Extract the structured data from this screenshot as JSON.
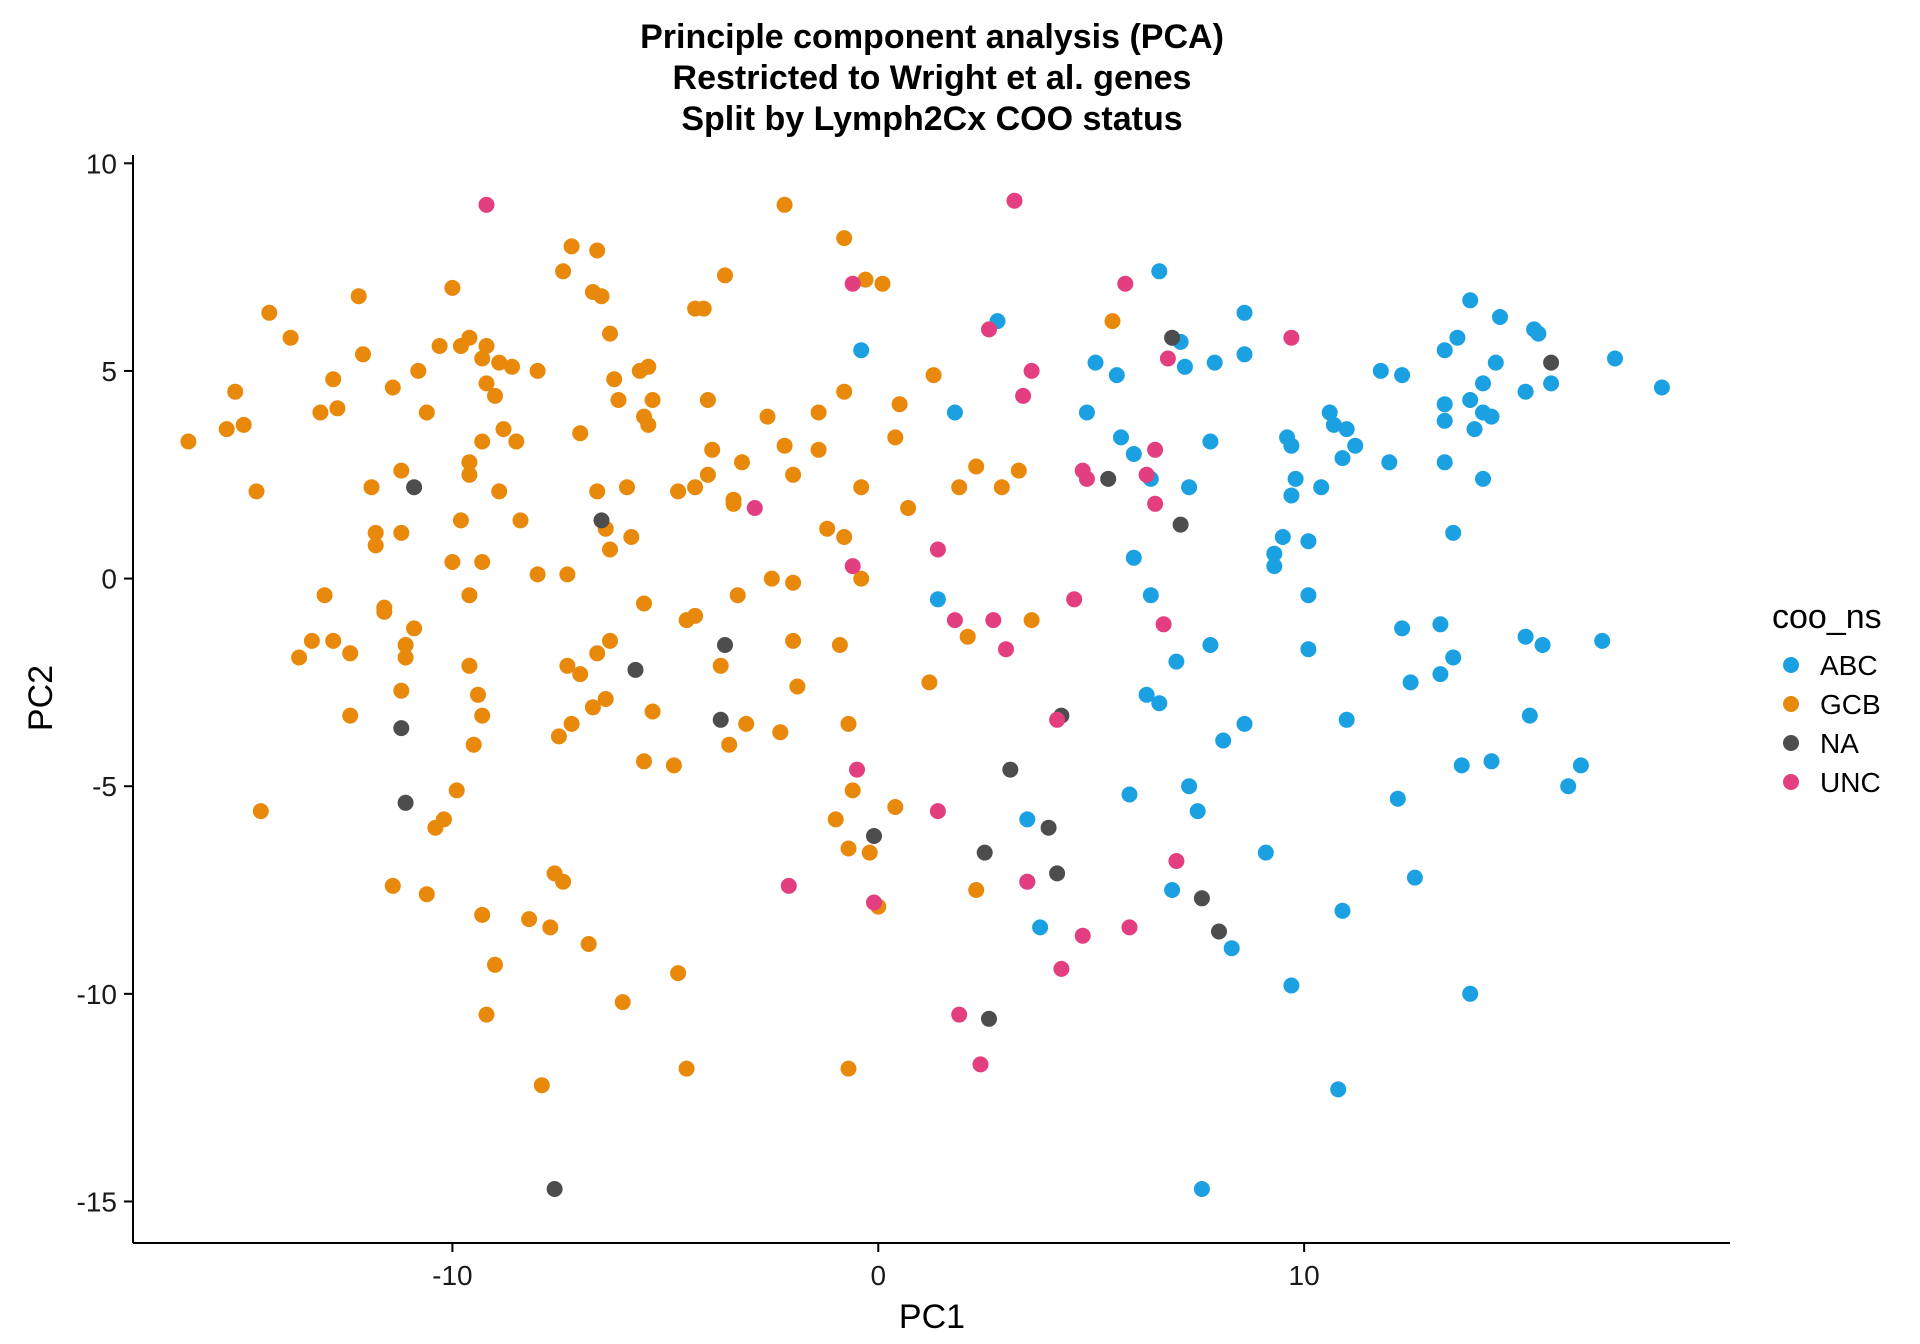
{
  "chart_data": {
    "type": "scatter",
    "title": [
      "Principle component analysis (PCA)",
      "Restricted to Wright et al. genes",
      "Split by Lymph2Cx COO status"
    ],
    "xlabel": "PC1",
    "ylabel": "PC2",
    "xlim": [
      -17.5,
      20
    ],
    "ylim": [
      -16,
      10.2
    ],
    "x_ticks": [
      -10,
      0,
      10
    ],
    "x_tick_labels": [
      "-10",
      "0",
      "10"
    ],
    "y_ticks": [
      10,
      5,
      0,
      -5,
      -10,
      -15
    ],
    "y_tick_labels": [
      "10",
      "5",
      "0",
      "-5",
      "-10",
      "-15"
    ],
    "grid": false,
    "legend": {
      "title": "coo_ns",
      "placement": "right"
    },
    "series": [
      {
        "name": "ABC",
        "color": "#1ba1e2",
        "points": [
          [
            -0.4,
            5.5
          ],
          [
            1.8,
            4.0
          ],
          [
            2.8,
            6.2
          ],
          [
            5.1,
            5.2
          ],
          [
            5.6,
            4.9
          ],
          [
            4.9,
            4.0
          ],
          [
            5.7,
            3.4
          ],
          [
            6.0,
            3.0
          ],
          [
            6.6,
            7.4
          ],
          [
            7.1,
            5.7
          ],
          [
            7.2,
            5.1
          ],
          [
            7.9,
            5.2
          ],
          [
            8.6,
            6.4
          ],
          [
            8.6,
            5.4
          ],
          [
            7.8,
            3.3
          ],
          [
            6.4,
            2.4
          ],
          [
            7.3,
            2.2
          ],
          [
            6.0,
            0.5
          ],
          [
            6.4,
            -0.4
          ],
          [
            9.6,
            3.4
          ],
          [
            9.7,
            3.2
          ],
          [
            9.8,
            2.4
          ],
          [
            9.7,
            2.0
          ],
          [
            10.4,
            2.2
          ],
          [
            9.5,
            1.0
          ],
          [
            10.1,
            0.9
          ],
          [
            9.3,
            0.6
          ],
          [
            9.3,
            0.3
          ],
          [
            10.6,
            4.0
          ],
          [
            10.7,
            3.7
          ],
          [
            11.0,
            3.6
          ],
          [
            11.2,
            3.2
          ],
          [
            10.9,
            2.9
          ],
          [
            11.8,
            5.0
          ],
          [
            12.3,
            4.9
          ],
          [
            12.0,
            2.8
          ],
          [
            13.3,
            5.5
          ],
          [
            13.6,
            5.8
          ],
          [
            13.3,
            4.2
          ],
          [
            13.3,
            3.8
          ],
          [
            13.9,
            6.7
          ],
          [
            14.6,
            6.3
          ],
          [
            14.2,
            4.7
          ],
          [
            13.9,
            4.3
          ],
          [
            14.5,
            5.2
          ],
          [
            14.2,
            4.0
          ],
          [
            14.4,
            3.9
          ],
          [
            14.0,
            3.6
          ],
          [
            15.2,
            4.5
          ],
          [
            15.4,
            6.0
          ],
          [
            15.5,
            5.9
          ],
          [
            15.8,
            4.7
          ],
          [
            17.3,
            5.3
          ],
          [
            18.4,
            4.6
          ],
          [
            13.3,
            2.8
          ],
          [
            14.2,
            2.4
          ],
          [
            13.5,
            1.1
          ],
          [
            1.4,
            -0.5
          ],
          [
            10.1,
            -0.4
          ],
          [
            7.0,
            -2.0
          ],
          [
            7.8,
            -1.6
          ],
          [
            10.1,
            -1.7
          ],
          [
            12.3,
            -1.2
          ],
          [
            13.2,
            -1.1
          ],
          [
            13.5,
            -1.9
          ],
          [
            12.5,
            -2.5
          ],
          [
            13.2,
            -2.3
          ],
          [
            15.2,
            -1.4
          ],
          [
            15.6,
            -1.6
          ],
          [
            17.0,
            -1.5
          ],
          [
            6.3,
            -2.8
          ],
          [
            6.6,
            -3.0
          ],
          [
            8.1,
            -3.9
          ],
          [
            8.6,
            -3.5
          ],
          [
            11.0,
            -3.4
          ],
          [
            15.3,
            -3.3
          ],
          [
            5.9,
            -5.2
          ],
          [
            7.3,
            -5.0
          ],
          [
            7.5,
            -5.6
          ],
          [
            12.2,
            -5.3
          ],
          [
            13.7,
            -4.5
          ],
          [
            14.4,
            -4.4
          ],
          [
            16.5,
            -4.5
          ],
          [
            16.2,
            -5.0
          ],
          [
            3.5,
            -5.8
          ],
          [
            9.1,
            -6.6
          ],
          [
            3.5,
            -7.3
          ],
          [
            6.9,
            -7.5
          ],
          [
            12.6,
            -7.2
          ],
          [
            3.8,
            -8.4
          ],
          [
            8.3,
            -8.9
          ],
          [
            10.9,
            -8.0
          ],
          [
            9.7,
            -9.8
          ],
          [
            13.9,
            -10.0
          ],
          [
            10.8,
            -12.3
          ],
          [
            7.6,
            -14.7
          ]
        ]
      },
      {
        "name": "GCB",
        "color": "#e8890c",
        "points": [
          [
            -16.2,
            3.3
          ],
          [
            -15.3,
            3.6
          ],
          [
            -15.1,
            4.5
          ],
          [
            -14.9,
            3.7
          ],
          [
            -14.6,
            2.1
          ],
          [
            -14.3,
            6.4
          ],
          [
            -13.8,
            5.8
          ],
          [
            -13.1,
            4.0
          ],
          [
            -12.8,
            4.8
          ],
          [
            -12.7,
            4.1
          ],
          [
            -12.2,
            6.8
          ],
          [
            -12.1,
            5.4
          ],
          [
            -11.9,
            2.2
          ],
          [
            -11.8,
            1.1
          ],
          [
            -11.8,
            0.8
          ],
          [
            -11.4,
            4.6
          ],
          [
            -11.2,
            2.6
          ],
          [
            -11.2,
            1.1
          ],
          [
            -10.8,
            5.0
          ],
          [
            -10.6,
            4.0
          ],
          [
            -10.3,
            5.6
          ],
          [
            -10.0,
            7.0
          ],
          [
            -9.8,
            5.6
          ],
          [
            -9.6,
            5.8
          ],
          [
            -9.3,
            5.3
          ],
          [
            -9.2,
            5.6
          ],
          [
            -9.2,
            4.7
          ],
          [
            -9.0,
            4.4
          ],
          [
            -8.9,
            5.2
          ],
          [
            -8.6,
            5.1
          ],
          [
            -8.0,
            5.0
          ],
          [
            -9.3,
            3.3
          ],
          [
            -9.6,
            2.8
          ],
          [
            -9.6,
            2.5
          ],
          [
            -8.8,
            3.6
          ],
          [
            -8.5,
            3.3
          ],
          [
            -9.8,
            1.4
          ],
          [
            -8.9,
            2.1
          ],
          [
            -8.4,
            1.4
          ],
          [
            -9.3,
            0.4
          ],
          [
            -10.0,
            0.4
          ],
          [
            -11.6,
            -0.7
          ],
          [
            -11.6,
            -0.8
          ],
          [
            -10.9,
            -1.2
          ],
          [
            -11.1,
            -1.6
          ],
          [
            -11.1,
            -1.9
          ],
          [
            -9.6,
            -0.4
          ],
          [
            -13.0,
            -0.4
          ],
          [
            -13.3,
            -1.5
          ],
          [
            -12.8,
            -1.5
          ],
          [
            -12.4,
            -1.8
          ],
          [
            -13.6,
            -1.9
          ],
          [
            -11.2,
            -2.7
          ],
          [
            -9.6,
            -2.1
          ],
          [
            -9.4,
            -2.8
          ],
          [
            -9.3,
            -3.3
          ],
          [
            -9.5,
            -4.0
          ],
          [
            -12.4,
            -3.3
          ],
          [
            -8.0,
            0.1
          ],
          [
            -7.3,
            0.1
          ],
          [
            -7.4,
            7.4
          ],
          [
            -7.2,
            8.0
          ],
          [
            -6.7,
            6.9
          ],
          [
            -6.5,
            6.8
          ],
          [
            -6.6,
            7.9
          ],
          [
            -6.3,
            5.9
          ],
          [
            -6.2,
            4.8
          ],
          [
            -6.1,
            4.3
          ],
          [
            -5.6,
            5.0
          ],
          [
            -5.4,
            5.1
          ],
          [
            -5.5,
            3.9
          ],
          [
            -5.3,
            4.3
          ],
          [
            -5.4,
            3.7
          ],
          [
            -7.0,
            3.5
          ],
          [
            -6.6,
            2.1
          ],
          [
            -5.9,
            2.2
          ],
          [
            -6.4,
            1.2
          ],
          [
            -5.8,
            1.0
          ],
          [
            -6.3,
            0.7
          ],
          [
            -7.3,
            -2.1
          ],
          [
            -7.0,
            -2.3
          ],
          [
            -6.6,
            -1.8
          ],
          [
            -6.3,
            -1.5
          ],
          [
            -5.5,
            -0.6
          ],
          [
            -4.5,
            -1.0
          ],
          [
            -4.3,
            -0.9
          ],
          [
            -3.7,
            -2.1
          ],
          [
            -6.7,
            -3.1
          ],
          [
            -6.4,
            -2.9
          ],
          [
            -5.3,
            -3.2
          ],
          [
            -7.2,
            -3.5
          ],
          [
            -7.5,
            -3.8
          ],
          [
            -5.5,
            -4.4
          ],
          [
            -4.8,
            -4.5
          ],
          [
            -3.5,
            -4.0
          ],
          [
            -4.3,
            6.5
          ],
          [
            -4.1,
            6.5
          ],
          [
            -3.6,
            7.3
          ],
          [
            -2.2,
            9.0
          ],
          [
            -0.8,
            8.2
          ],
          [
            -0.3,
            7.2
          ],
          [
            0.1,
            7.1
          ],
          [
            -4.0,
            4.3
          ],
          [
            -3.9,
            3.1
          ],
          [
            -4.0,
            2.5
          ],
          [
            -3.4,
            1.8
          ],
          [
            -4.3,
            2.2
          ],
          [
            -4.7,
            2.1
          ],
          [
            -3.4,
            1.9
          ],
          [
            -3.2,
            2.8
          ],
          [
            -2.6,
            3.9
          ],
          [
            -1.4,
            3.1
          ],
          [
            -2.2,
            3.2
          ],
          [
            -1.4,
            4.0
          ],
          [
            -0.8,
            4.5
          ],
          [
            -2.0,
            2.5
          ],
          [
            -0.4,
            2.2
          ],
          [
            0.5,
            4.2
          ],
          [
            0.4,
            3.4
          ],
          [
            -1.2,
            1.2
          ],
          [
            -0.8,
            1.0
          ],
          [
            -0.4,
            0.0
          ],
          [
            0.7,
            1.7
          ],
          [
            -2.5,
            0.0
          ],
          [
            -2.0,
            -0.1
          ],
          [
            -3.3,
            -0.4
          ],
          [
            -2.0,
            -1.5
          ],
          [
            -1.9,
            -2.6
          ],
          [
            -0.9,
            -1.6
          ],
          [
            -2.3,
            -3.7
          ],
          [
            -3.1,
            -3.5
          ],
          [
            -0.7,
            -3.5
          ],
          [
            1.2,
            -2.5
          ],
          [
            -0.6,
            -5.1
          ],
          [
            -1.0,
            -5.8
          ],
          [
            -0.7,
            -6.5
          ],
          [
            -0.2,
            -6.6
          ],
          [
            0.4,
            -5.5
          ],
          [
            -7.4,
            -7.3
          ],
          [
            -7.6,
            -7.1
          ],
          [
            -10.4,
            -6.0
          ],
          [
            -10.2,
            -5.8
          ],
          [
            -9.9,
            -5.1
          ],
          [
            -14.5,
            -5.6
          ],
          [
            -11.4,
            -7.4
          ],
          [
            -10.6,
            -7.6
          ],
          [
            -9.3,
            -8.1
          ],
          [
            -8.2,
            -8.2
          ],
          [
            -7.7,
            -8.4
          ],
          [
            -6.8,
            -8.8
          ],
          [
            -9.0,
            -9.3
          ],
          [
            -6.0,
            -10.2
          ],
          [
            -4.7,
            -9.5
          ],
          [
            -9.2,
            -10.5
          ],
          [
            -7.9,
            -12.2
          ],
          [
            -4.5,
            -11.8
          ],
          [
            -0.7,
            -11.8
          ],
          [
            1.3,
            4.9
          ],
          [
            1.9,
            2.2
          ],
          [
            2.3,
            2.7
          ],
          [
            2.9,
            2.2
          ],
          [
            3.3,
            2.6
          ],
          [
            5.5,
            6.2
          ],
          [
            2.1,
            -1.4
          ],
          [
            3.6,
            -1.0
          ],
          [
            2.3,
            -7.5
          ],
          [
            0.0,
            -7.9
          ]
        ]
      },
      {
        "name": "NA",
        "color": "#4d4d4d",
        "points": [
          [
            -10.9,
            2.2
          ],
          [
            -6.5,
            1.4
          ],
          [
            -3.6,
            -1.6
          ],
          [
            -5.7,
            -2.2
          ],
          [
            -11.2,
            -3.6
          ],
          [
            -11.1,
            -5.4
          ],
          [
            -3.7,
            -3.4
          ],
          [
            -7.6,
            -14.7
          ],
          [
            -0.1,
            -6.2
          ],
          [
            2.5,
            -6.6
          ],
          [
            3.1,
            -4.6
          ],
          [
            4.0,
            -6.0
          ],
          [
            4.3,
            -3.3
          ],
          [
            4.2,
            -7.1
          ],
          [
            2.6,
            -10.6
          ],
          [
            5.4,
            2.4
          ],
          [
            7.1,
            1.3
          ],
          [
            6.9,
            5.8
          ],
          [
            7.6,
            -7.7
          ],
          [
            8.0,
            -8.5
          ],
          [
            15.8,
            5.2
          ]
        ]
      },
      {
        "name": "UNC",
        "color": "#e23e80",
        "points": [
          [
            -9.2,
            9.0
          ],
          [
            -2.9,
            1.7
          ],
          [
            3.2,
            9.1
          ],
          [
            -0.6,
            7.1
          ],
          [
            2.6,
            6.0
          ],
          [
            3.6,
            5.0
          ],
          [
            3.4,
            4.4
          ],
          [
            5.8,
            7.1
          ],
          [
            6.8,
            5.3
          ],
          [
            9.7,
            5.8
          ],
          [
            6.5,
            3.1
          ],
          [
            6.3,
            2.5
          ],
          [
            4.8,
            2.6
          ],
          [
            4.9,
            2.4
          ],
          [
            6.5,
            1.8
          ],
          [
            -0.6,
            0.3
          ],
          [
            1.4,
            0.7
          ],
          [
            1.8,
            -1.0
          ],
          [
            2.7,
            -1.0
          ],
          [
            3.0,
            -1.7
          ],
          [
            4.6,
            -0.5
          ],
          [
            6.7,
            -1.1
          ],
          [
            -0.5,
            -4.6
          ],
          [
            1.4,
            -5.6
          ],
          [
            4.2,
            -3.4
          ],
          [
            -2.1,
            -7.4
          ],
          [
            -0.1,
            -7.8
          ],
          [
            3.5,
            -7.3
          ],
          [
            7.0,
            -6.8
          ],
          [
            4.8,
            -8.6
          ],
          [
            5.9,
            -8.4
          ],
          [
            4.3,
            -9.4
          ],
          [
            1.9,
            -10.5
          ],
          [
            2.4,
            -11.7
          ]
        ]
      }
    ]
  }
}
